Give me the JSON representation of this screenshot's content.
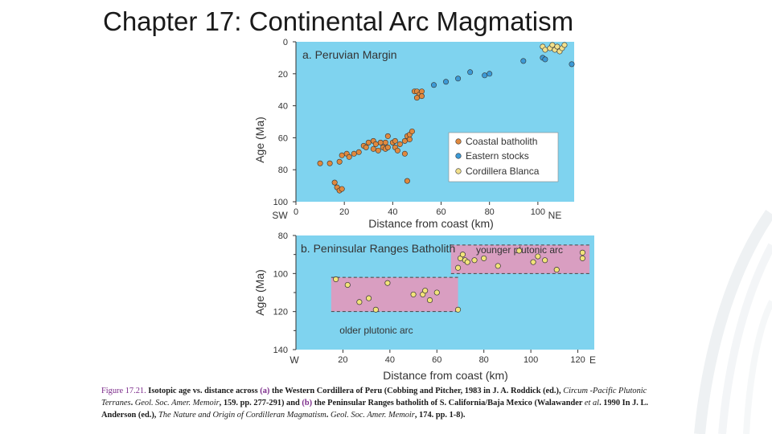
{
  "slide_title": "Chapter 17: Continental Arc Magmatism",
  "caption": {
    "fig_no": "Figure 17.21.",
    "t1": " Isotopic age vs. distance across ",
    "a": "(a)",
    "t2": " the Western Cordillera of Peru (Cobbing and Pitcher, 1983 in J. A. Roddick (ed.), ",
    "i1": "Circum -Pacific Plutonic Terranes",
    "t3": ". ",
    "i2": "Geol. Soc. Amer. Memoir",
    "t4": ", 159. pp. 277-291) and ",
    "b": "(b)",
    "t5": " the Peninsular Ranges batholith of S. California/Baja Mexico (Walawander ",
    "i3": "et al",
    "t6": ". 1990 In J. L. Anderson (ed.), ",
    "i4": "The Nature and Origin of Cordilleran Magmatism",
    "t7": ". ",
    "i5": "Geol. Soc. Amer. Memoir",
    "t8": ", 174. pp. 1-8)."
  },
  "colors": {
    "panel_bg": "#7fd3ef",
    "arc_fill": "#d99ec1",
    "coastal": "#e0893e",
    "eastern": "#3d9ad6",
    "blanca": "#f2e08c",
    "prb_point": "#f2e37a",
    "axis": "#333333"
  },
  "chart_data": [
    {
      "type": "scatter",
      "title": "a. Peruvian Margin",
      "xlabel": "Distance from coast (km)",
      "ylabel": "Age (Ma)",
      "xlim": [
        0,
        115
      ],
      "ylim": [
        100,
        0
      ],
      "x_ticks": [
        0,
        20,
        40,
        60,
        80,
        100
      ],
      "y_ticks": [
        0,
        20,
        40,
        60,
        80,
        100
      ],
      "end_labels": {
        "left": "SW",
        "right": "NE"
      },
      "legend_position": "bottom-right",
      "series": [
        {
          "name": "Coastal batholith",
          "color_key": "coastal",
          "points": [
            [
              10,
              76
            ],
            [
              14,
              76
            ],
            [
              18,
              75
            ],
            [
              19,
              71
            ],
            [
              21,
              70
            ],
            [
              22,
              72
            ],
            [
              24,
              70
            ],
            [
              26,
              69
            ],
            [
              28,
              65
            ],
            [
              29,
              66
            ],
            [
              30,
              63
            ],
            [
              32,
              67
            ],
            [
              32,
              62
            ],
            [
              33,
              64
            ],
            [
              34,
              68
            ],
            [
              35,
              63
            ],
            [
              36,
              66
            ],
            [
              37,
              63
            ],
            [
              37,
              67
            ],
            [
              38,
              66
            ],
            [
              38,
              59
            ],
            [
              40,
              63
            ],
            [
              41,
              66
            ],
            [
              41,
              62
            ],
            [
              42,
              68
            ],
            [
              43,
              64
            ],
            [
              45,
              70
            ],
            [
              45,
              62
            ],
            [
              46,
              59
            ],
            [
              47,
              61
            ],
            [
              47,
              58
            ],
            [
              48,
              56
            ],
            [
              46,
              87
            ],
            [
              16,
              88
            ],
            [
              17,
              91
            ],
            [
              18,
              93
            ],
            [
              19,
              92
            ],
            [
              49,
              31
            ],
            [
              50,
              31
            ],
            [
              51,
              33
            ],
            [
              52,
              31
            ],
            [
              50,
              35
            ],
            [
              52,
              34
            ]
          ]
        },
        {
          "name": "Eastern stocks",
          "color_key": "eastern",
          "points": [
            [
              57,
              27
            ],
            [
              62,
              25
            ],
            [
              67,
              23
            ],
            [
              72,
              19
            ],
            [
              78,
              21
            ],
            [
              80,
              20
            ],
            [
              94,
              12
            ],
            [
              102,
              10
            ],
            [
              103,
              11
            ],
            [
              114,
              14
            ]
          ]
        },
        {
          "name": "Cordillera Blanca",
          "color_key": "blanca",
          "points": [
            [
              102,
              3
            ],
            [
              103,
              5
            ],
            [
              105,
              4
            ],
            [
              106,
              2
            ],
            [
              107,
              5
            ],
            [
              108,
              3
            ],
            [
              109,
              6
            ],
            [
              110,
              4
            ],
            [
              111,
              2
            ]
          ]
        }
      ]
    },
    {
      "type": "scatter",
      "title": "b. Peninsular Ranges Batholith",
      "xlabel": "Distance from coast (km)",
      "ylabel": "Age (Ma)",
      "xlim": [
        0,
        127
      ],
      "ylim": [
        140,
        80
      ],
      "x_ticks": [
        20,
        40,
        60,
        80,
        100,
        120
      ],
      "y_ticks": [
        80,
        100,
        120,
        140
      ],
      "end_labels": {
        "left": "W",
        "right": "E"
      },
      "bands": [
        {
          "label": "older plutonic arc",
          "x": [
            15,
            69
          ],
          "y": [
            102,
            120
          ]
        },
        {
          "label": "younger plutonic arc",
          "x": [
            66,
            125
          ],
          "y": [
            85,
            100
          ]
        }
      ],
      "series": [
        {
          "name": "",
          "color_key": "prb_point",
          "points": [
            [
              17,
              103
            ],
            [
              22,
              106
            ],
            [
              27,
              115
            ],
            [
              31,
              113
            ],
            [
              34,
              119
            ],
            [
              39,
              105
            ],
            [
              50,
              111
            ],
            [
              54,
              111
            ],
            [
              55,
              109
            ],
            [
              57,
              114
            ],
            [
              60,
              110
            ],
            [
              69,
              119
            ],
            [
              69,
              97
            ],
            [
              70,
              92
            ],
            [
              71,
              90
            ],
            [
              72,
              93
            ],
            [
              73,
              94
            ],
            [
              76,
              93
            ],
            [
              80,
              92
            ],
            [
              86,
              96
            ],
            [
              95,
              88
            ],
            [
              101,
              94
            ],
            [
              103,
              91
            ],
            [
              106,
              93
            ],
            [
              111,
              98
            ],
            [
              122,
              89
            ],
            [
              122,
              92
            ]
          ]
        }
      ]
    }
  ]
}
